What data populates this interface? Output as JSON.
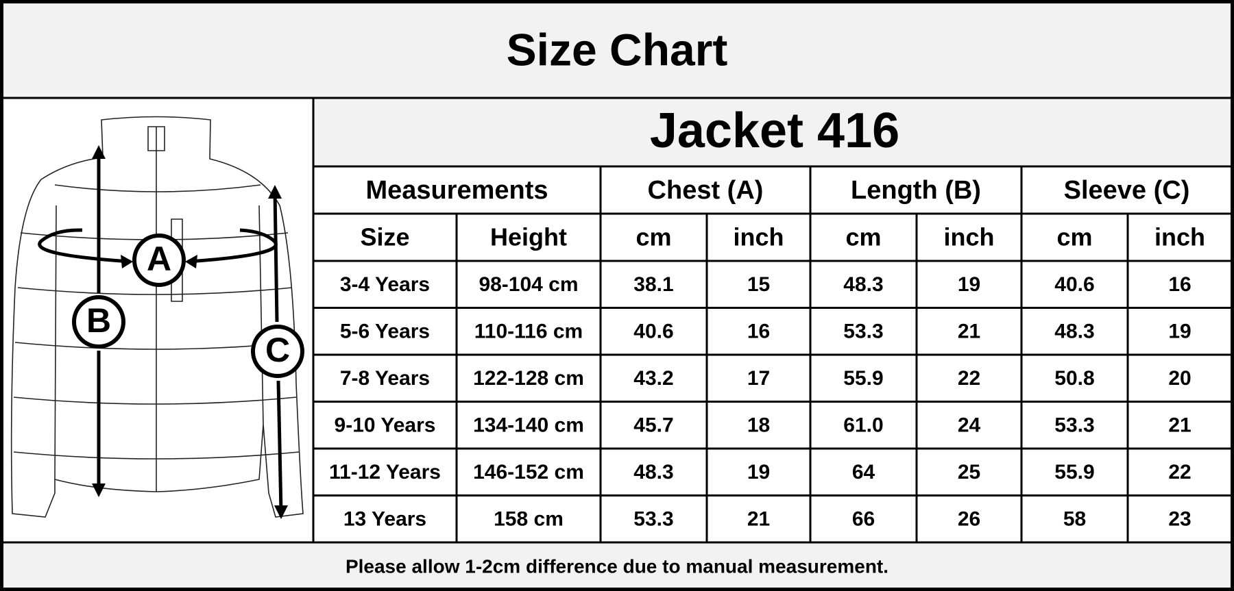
{
  "header": {
    "title": "Size Chart"
  },
  "diagram": {
    "labels": [
      "A",
      "B",
      "C"
    ]
  },
  "table": {
    "title": "Jacket 416",
    "groups": [
      "Measurements",
      "Chest (A)",
      "Length (B)",
      "Sleeve (C)"
    ],
    "columns": [
      "Size",
      "Height",
      "cm",
      "inch",
      "cm",
      "inch",
      "cm",
      "inch"
    ],
    "rows": [
      [
        "3-4 Years",
        "98-104 cm",
        "38.1",
        "15",
        "48.3",
        "19",
        "40.6",
        "16"
      ],
      [
        "5-6 Years",
        "110-116 cm",
        "40.6",
        "16",
        "53.3",
        "21",
        "48.3",
        "19"
      ],
      [
        "7-8 Years",
        "122-128 cm",
        "43.2",
        "17",
        "55.9",
        "22",
        "50.8",
        "20"
      ],
      [
        "9-10 Years",
        "134-140 cm",
        "45.7",
        "18",
        "61.0",
        "24",
        "53.3",
        "21"
      ],
      [
        "11-12 Years",
        "146-152 cm",
        "48.3",
        "19",
        "64",
        "25",
        "55.9",
        "22"
      ],
      [
        "13 Years",
        "158 cm",
        "53.3",
        "21",
        "66",
        "26",
        "58",
        "23"
      ]
    ]
  },
  "footer": {
    "note": "Please allow 1-2cm difference due to manual measurement."
  }
}
